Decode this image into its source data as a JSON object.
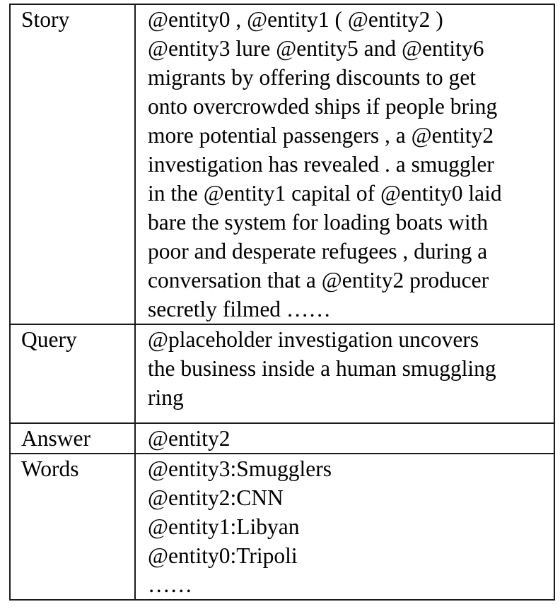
{
  "rows": [
    {
      "label": "Story",
      "lines": [
        "@entity0 , @entity1 ( @entity2 )",
        "@entity3 lure @entity5 and @entity6",
        "migrants by offering discounts to get",
        "onto overcrowded ships if people bring",
        "more potential passengers , a @entity2",
        "investigation has revealed . a smuggler",
        "in the @entity1 capital of @entity0 laid",
        "bare the system for loading boats with",
        "poor and desperate refugees , during a",
        "conversation that a @entity2 producer",
        "secretly filmed ……"
      ]
    },
    {
      "label": "Query",
      "lines": [
        "@placeholder investigation uncovers",
        "the business inside a human smuggling",
        "ring"
      ]
    },
    {
      "label": "Answer",
      "lines": [
        "@entity2"
      ]
    },
    {
      "label": "Words",
      "lines": [
        "@entity3:Smugglers",
        "@entity2:CNN",
        "@entity1:Libyan",
        "@entity0:Tripoli",
        "……"
      ]
    }
  ]
}
